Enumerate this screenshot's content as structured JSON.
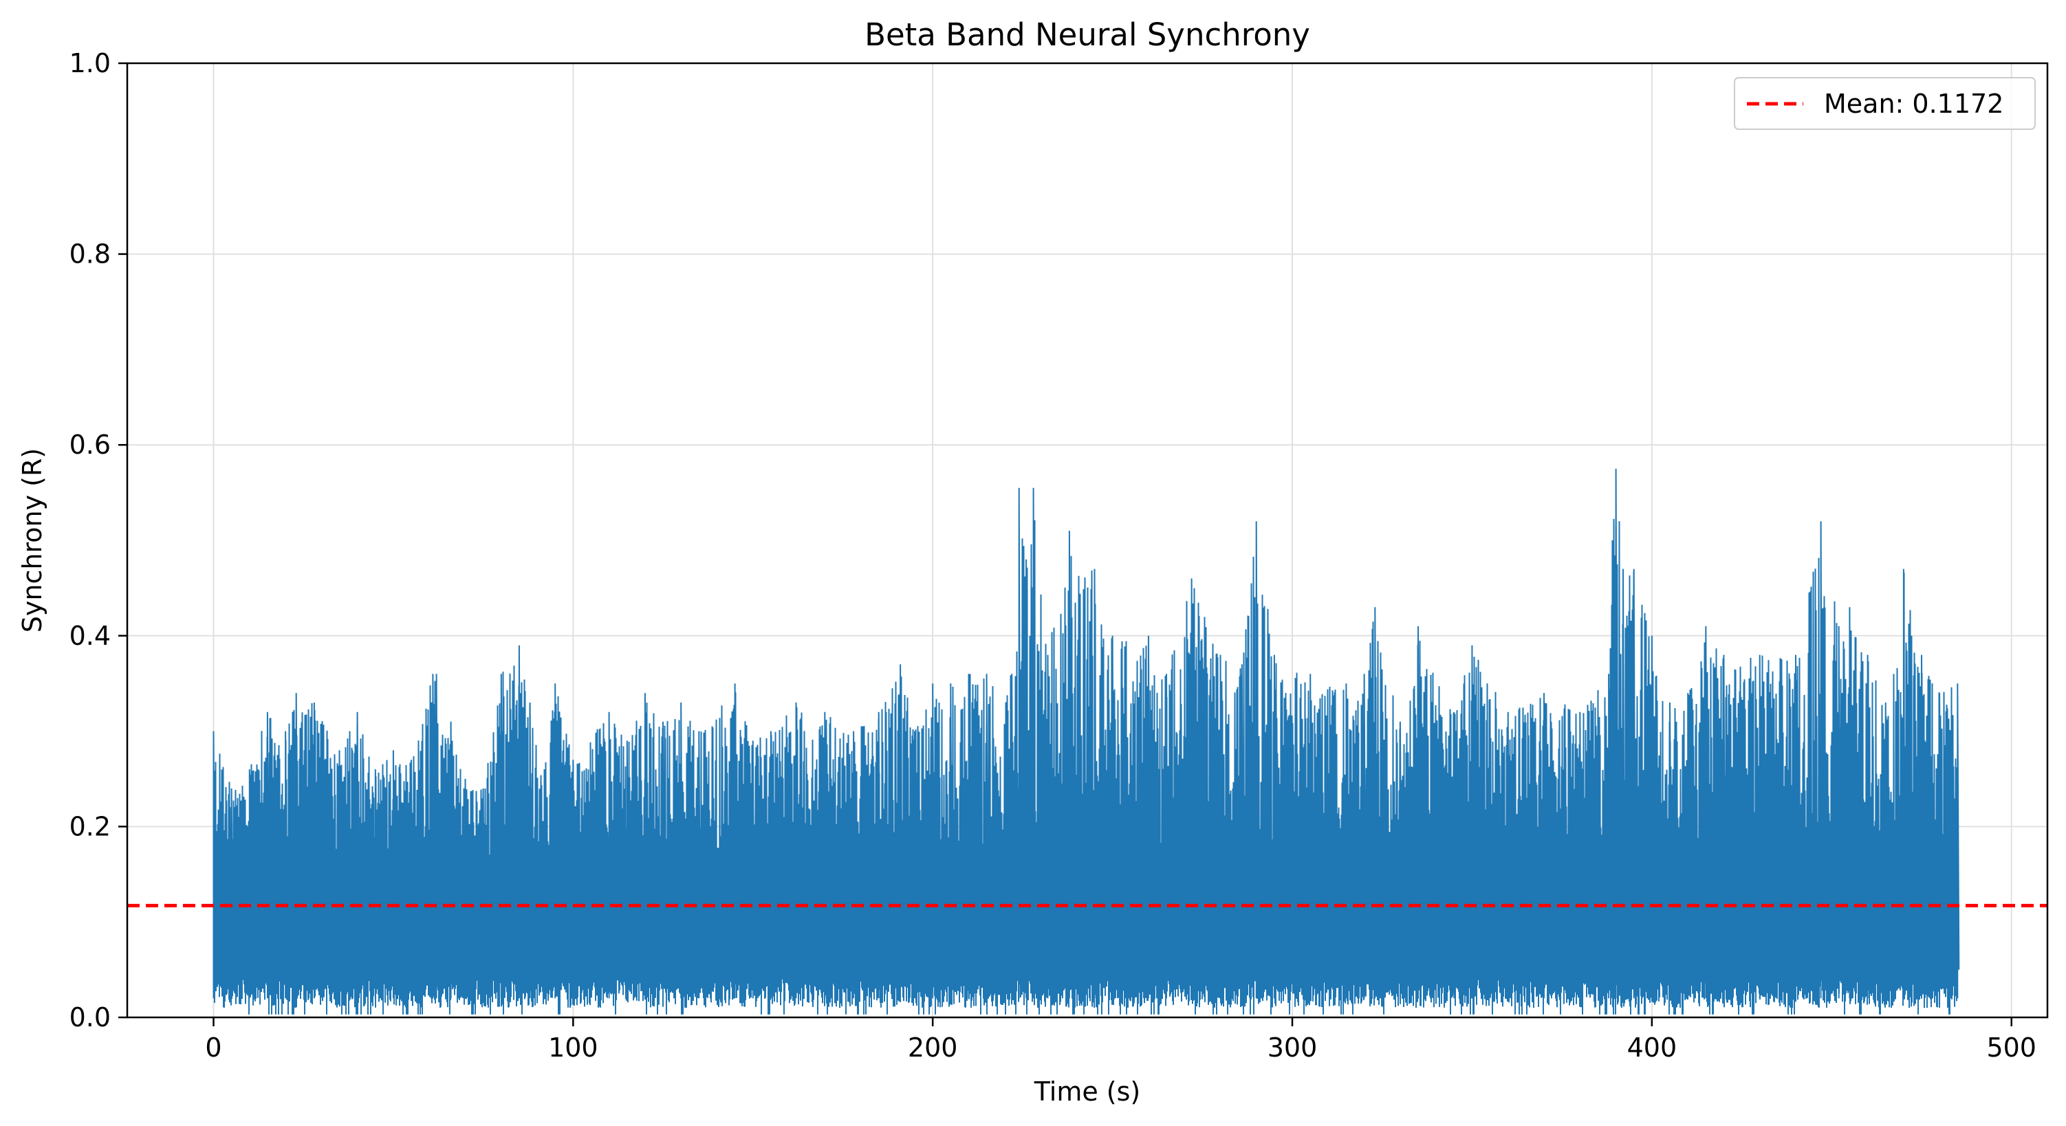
{
  "chart_data": {
    "type": "line",
    "title": "Beta Band Neural Synchrony",
    "xlabel": "Time (s)",
    "ylabel": "Synchrony (R)",
    "xlim": [
      -24,
      510
    ],
    "ylim": [
      0.0,
      1.0
    ],
    "x_ticks": [
      "0",
      "100",
      "200",
      "300",
      "400",
      "500"
    ],
    "y_ticks": [
      "0.0",
      "0.2",
      "0.4",
      "0.6",
      "0.8",
      "1.0"
    ],
    "grid": true,
    "legend_position": "top-right",
    "series": [
      {
        "name": "",
        "color": "#1f77b4",
        "x_range": [
          0,
          485
        ],
        "upper_envelope": [
          [
            0,
            0.3
          ],
          [
            5,
            0.24
          ],
          [
            10,
            0.26
          ],
          [
            15,
            0.32
          ],
          [
            20,
            0.3
          ],
          [
            23,
            0.34
          ],
          [
            28,
            0.33
          ],
          [
            35,
            0.28
          ],
          [
            40,
            0.32
          ],
          [
            45,
            0.26
          ],
          [
            50,
            0.28
          ],
          [
            55,
            0.27
          ],
          [
            61,
            0.36
          ],
          [
            62,
            0.36
          ],
          [
            66,
            0.31
          ],
          [
            70,
            0.25
          ],
          [
            75,
            0.24
          ],
          [
            80,
            0.36
          ],
          [
            85,
            0.39
          ],
          [
            88,
            0.33
          ],
          [
            92,
            0.26
          ],
          [
            95,
            0.35
          ],
          [
            100,
            0.27
          ],
          [
            110,
            0.32
          ],
          [
            115,
            0.29
          ],
          [
            120,
            0.34
          ],
          [
            125,
            0.31
          ],
          [
            130,
            0.33
          ],
          [
            135,
            0.3
          ],
          [
            145,
            0.35
          ],
          [
            150,
            0.29
          ],
          [
            155,
            0.3
          ],
          [
            162,
            0.33
          ],
          [
            170,
            0.32
          ],
          [
            178,
            0.3
          ],
          [
            185,
            0.32
          ],
          [
            191,
            0.37
          ],
          [
            195,
            0.3
          ],
          [
            200,
            0.35
          ],
          [
            205,
            0.35
          ],
          [
            210,
            0.36
          ],
          [
            215,
            0.36
          ],
          [
            222,
            0.36
          ],
          [
            224,
            0.555
          ],
          [
            226,
            0.48
          ],
          [
            228,
            0.555
          ],
          [
            232,
            0.38
          ],
          [
            238,
            0.51
          ],
          [
            245,
            0.47
          ],
          [
            250,
            0.4
          ],
          [
            260,
            0.4
          ],
          [
            265,
            0.36
          ],
          [
            272,
            0.46
          ],
          [
            280,
            0.38
          ],
          [
            286,
            0.37
          ],
          [
            290,
            0.52
          ],
          [
            295,
            0.38
          ],
          [
            305,
            0.36
          ],
          [
            315,
            0.35
          ],
          [
            320,
            0.36
          ],
          [
            323,
            0.43
          ],
          [
            330,
            0.31
          ],
          [
            335,
            0.41
          ],
          [
            345,
            0.32
          ],
          [
            350,
            0.39
          ],
          [
            360,
            0.32
          ],
          [
            370,
            0.34
          ],
          [
            380,
            0.32
          ],
          [
            388,
            0.36
          ],
          [
            389,
            0.5
          ],
          [
            390,
            0.575
          ],
          [
            392,
            0.47
          ],
          [
            395,
            0.47
          ],
          [
            400,
            0.4
          ],
          [
            405,
            0.33
          ],
          [
            410,
            0.34
          ],
          [
            415,
            0.41
          ],
          [
            420,
            0.38
          ],
          [
            430,
            0.38
          ],
          [
            440,
            0.38
          ],
          [
            447,
            0.52
          ],
          [
            452,
            0.41
          ],
          [
            455,
            0.43
          ],
          [
            460,
            0.38
          ],
          [
            465,
            0.33
          ],
          [
            470,
            0.47
          ],
          [
            475,
            0.38
          ],
          [
            480,
            0.34
          ],
          [
            485,
            0.35
          ]
        ],
        "lower_envelope_typical": 0.01
      }
    ],
    "mean_line": {
      "label": "Mean: 0.1172",
      "value": 0.1172,
      "color": "#ff0000",
      "style": "dashed"
    }
  }
}
